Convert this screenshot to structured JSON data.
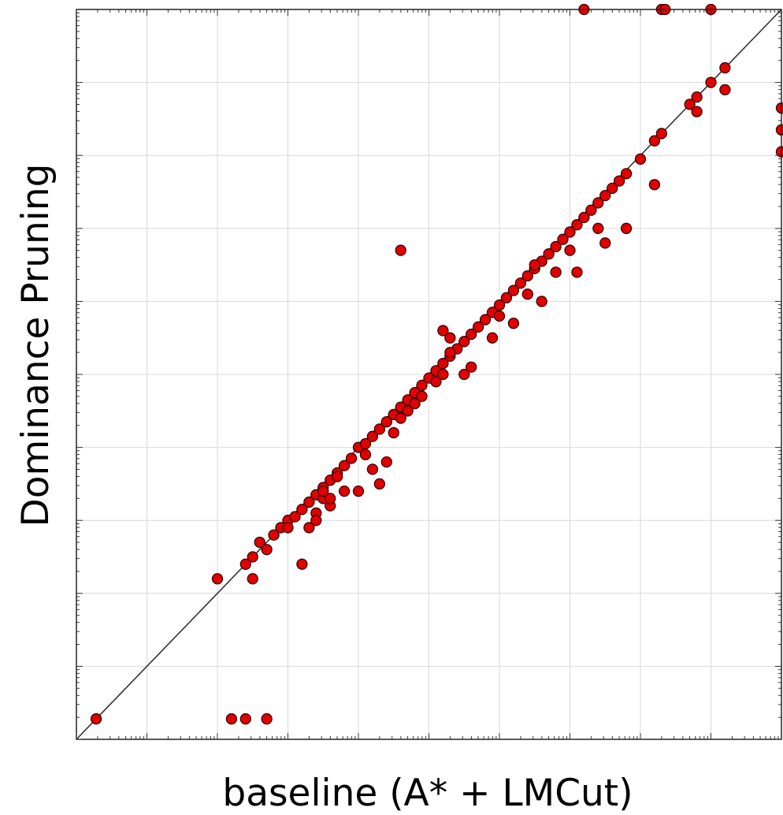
{
  "chart_data": {
    "type": "scatter",
    "title": "",
    "xlabel": "baseline (A* + LMCut)",
    "ylabel": "Dominance Pruning",
    "xlim": [
      0,
      10
    ],
    "ylim": [
      0,
      10
    ],
    "x_major_ticks": [
      1,
      2,
      3,
      4,
      5,
      6,
      7,
      8,
      9
    ],
    "y_major_ticks": [
      1,
      2,
      3,
      4,
      5,
      6,
      7,
      8,
      9
    ],
    "tick_labels_shown": false,
    "grid": true,
    "diagonal_reference_line": true,
    "colors": {
      "points": "#e00000",
      "point_edge": "#3a0000",
      "grid": "#d9d9d9",
      "diagonal": "#333333",
      "frame": "#222222"
    },
    "points": [
      [
        0.28,
        0.28
      ],
      [
        2.2,
        0.28
      ],
      [
        2.4,
        0.28
      ],
      [
        2.7,
        0.28
      ],
      [
        2.0,
        2.2
      ],
      [
        2.5,
        2.2
      ],
      [
        2.5,
        2.5
      ],
      [
        2.4,
        2.4
      ],
      [
        2.7,
        2.6
      ],
      [
        2.6,
        2.7
      ],
      [
        2.8,
        2.8
      ],
      [
        2.9,
        2.9
      ],
      [
        3.0,
        3.0
      ],
      [
        3.1,
        3.05
      ],
      [
        3.2,
        3.15
      ],
      [
        3.3,
        3.25
      ],
      [
        3.4,
        3.35
      ],
      [
        3.5,
        3.45
      ],
      [
        3.6,
        3.55
      ],
      [
        3.7,
        3.65
      ],
      [
        3.8,
        3.75
      ],
      [
        3.9,
        3.85
      ],
      [
        4.0,
        4.0
      ],
      [
        4.1,
        4.05
      ],
      [
        4.2,
        4.15
      ],
      [
        4.3,
        4.25
      ],
      [
        4.4,
        4.35
      ],
      [
        4.5,
        4.45
      ],
      [
        4.6,
        4.55
      ],
      [
        4.7,
        4.65
      ],
      [
        4.8,
        4.75
      ],
      [
        4.9,
        4.85
      ],
      [
        5.0,
        4.95
      ],
      [
        5.1,
        5.05
      ],
      [
        5.2,
        5.15
      ],
      [
        5.3,
        5.25
      ],
      [
        5.4,
        5.35
      ],
      [
        5.5,
        5.45
      ],
      [
        5.6,
        5.55
      ],
      [
        5.7,
        5.65
      ],
      [
        5.8,
        5.75
      ],
      [
        5.9,
        5.85
      ],
      [
        6.0,
        5.95
      ],
      [
        6.1,
        6.05
      ],
      [
        6.2,
        6.15
      ],
      [
        6.3,
        6.25
      ],
      [
        6.4,
        6.35
      ],
      [
        6.5,
        6.45
      ],
      [
        6.6,
        6.55
      ],
      [
        6.7,
        6.65
      ],
      [
        6.8,
        6.75
      ],
      [
        6.9,
        6.85
      ],
      [
        7.0,
        6.95
      ],
      [
        7.1,
        7.05
      ],
      [
        7.2,
        7.15
      ],
      [
        7.3,
        7.25
      ],
      [
        7.4,
        7.35
      ],
      [
        7.5,
        7.45
      ],
      [
        7.6,
        7.55
      ],
      [
        7.7,
        7.65
      ],
      [
        7.8,
        7.75
      ],
      [
        8.0,
        7.95
      ],
      [
        8.2,
        8.2
      ],
      [
        8.3,
        8.3
      ],
      [
        8.7,
        8.7
      ],
      [
        8.8,
        8.8
      ],
      [
        9.0,
        9.0
      ],
      [
        9.2,
        9.2
      ],
      [
        3.4,
        3.1
      ],
      [
        3.3,
        2.9
      ],
      [
        3.5,
        3.3
      ],
      [
        3.6,
        3.2
      ],
      [
        3.8,
        3.4
      ],
      [
        3.7,
        3.6
      ],
      [
        4.1,
        3.9
      ],
      [
        4.2,
        3.7
      ],
      [
        4.3,
        3.5
      ],
      [
        4.4,
        3.8
      ],
      [
        4.5,
        4.2
      ],
      [
        4.6,
        4.4
      ],
      [
        4.7,
        4.5
      ],
      [
        4.8,
        4.6
      ],
      [
        4.9,
        4.7
      ],
      [
        5.1,
        4.9
      ],
      [
        5.2,
        5.0
      ],
      [
        5.3,
        5.3
      ],
      [
        5.5,
        5.0
      ],
      [
        5.6,
        5.1
      ],
      [
        5.9,
        5.5
      ],
      [
        6.0,
        5.8
      ],
      [
        6.2,
        5.7
      ],
      [
        6.4,
        6.1
      ],
      [
        6.6,
        6.0
      ],
      [
        6.8,
        6.4
      ],
      [
        7.0,
        6.7
      ],
      [
        7.1,
        6.4
      ],
      [
        7.4,
        7.0
      ],
      [
        7.5,
        6.8
      ],
      [
        7.8,
        7.0
      ],
      [
        8.2,
        7.6
      ],
      [
        8.8,
        8.6
      ],
      [
        9.2,
        8.9
      ],
      [
        3.2,
        2.4
      ],
      [
        3.0,
        2.9
      ],
      [
        4.0,
        3.4
      ],
      [
        3.4,
        3.0
      ],
      [
        3.6,
        3.3
      ],
      [
        3.5,
        3.4
      ],
      [
        6.5,
        6.5
      ],
      [
        4.6,
        6.7
      ],
      [
        5.2,
        5.6
      ],
      [
        5.3,
        5.5
      ],
      [
        7.2,
        10.0
      ],
      [
        8.3,
        10.0
      ],
      [
        8.35,
        10.0
      ],
      [
        9.0,
        10.0
      ],
      [
        10.0,
        8.65
      ],
      [
        10.0,
        8.35
      ],
      [
        10.0,
        8.05
      ]
    ]
  }
}
